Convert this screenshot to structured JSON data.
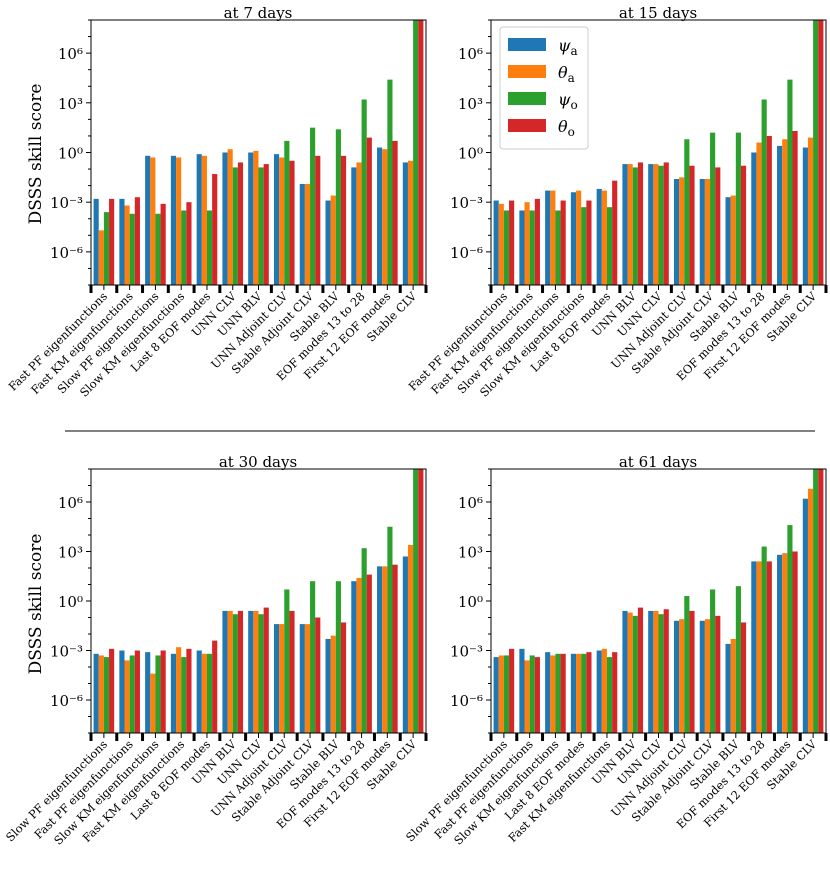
{
  "colors": {
    "psi_a": "#1f77b4",
    "theta_a": "#ff7f0e",
    "psi_o": "#2ca02c",
    "theta_o": "#d62728"
  },
  "legend": [
    {
      "key": "psi_a",
      "symbol": "ψ",
      "sub": "a"
    },
    {
      "key": "theta_a",
      "symbol": "θ",
      "sub": "a"
    },
    {
      "key": "psi_o",
      "symbol": "ψ",
      "sub": "o"
    },
    {
      "key": "theta_o",
      "symbol": "θ",
      "sub": "o"
    }
  ],
  "chart_data": [
    {
      "type": "bar",
      "title": "at 7 days",
      "ylabel": "DSSS skill score",
      "yscale": "log",
      "ylim_exp": [
        -8,
        8
      ],
      "ytick_exps": [
        -6,
        -3,
        0,
        3,
        6
      ],
      "series_names": [
        "psi_a",
        "theta_a",
        "psi_o",
        "theta_o"
      ],
      "categories": [
        "Fast PF eigenfunctions",
        "Fast KM eigenfunctions",
        "Slow PF eigenfunctions",
        "Slow KM eigenfunctions",
        "Last 8 EOF modes",
        "UNN CLV",
        "UNN BLV",
        "UNN Adjoint CLV",
        "Stable Adjoint CLV",
        "Stable BLV",
        "EOF modes 13 to 28",
        "First 12 EOF modes",
        "Stable CLV"
      ],
      "log10_values": [
        [
          -2.8,
          -4.7,
          -3.6,
          -2.8
        ],
        [
          -2.8,
          -3.2,
          -3.7,
          -2.7
        ],
        [
          -0.2,
          -0.3,
          -3.7,
          -3.1
        ],
        [
          -0.2,
          -0.3,
          -3.5,
          -3.0
        ],
        [
          -0.1,
          -0.2,
          -3.5,
          -1.3
        ],
        [
          0.0,
          0.2,
          -0.9,
          -0.6
        ],
        [
          0.0,
          0.1,
          -0.9,
          -0.7
        ],
        [
          -0.1,
          -0.3,
          0.7,
          -0.5
        ],
        [
          -1.9,
          -1.9,
          1.5,
          -0.2
        ],
        [
          -2.9,
          -2.6,
          1.4,
          -0.2
        ],
        [
          -0.9,
          -0.6,
          3.2,
          0.9
        ],
        [
          0.3,
          0.2,
          4.4,
          0.7
        ],
        [
          -0.6,
          -0.5,
          8.0,
          8.0
        ]
      ]
    },
    {
      "type": "bar",
      "title": "at 15 days",
      "ylabel": "",
      "yscale": "log",
      "ylim_exp": [
        -8,
        8
      ],
      "ytick_exps": [
        -6,
        -3,
        0,
        3,
        6
      ],
      "series_names": [
        "psi_a",
        "theta_a",
        "psi_o",
        "theta_o"
      ],
      "categories": [
        "Fast PF eigenfunctions",
        "Fast KM eigenfunctions",
        "Slow PF eigenfunctions",
        "Slow KM eigenfunctions",
        "Last 8 EOF modes",
        "UNN BLV",
        "UNN CLV",
        "UNN Adjoint CLV",
        "Stable Adjoint CLV",
        "Stable BLV",
        "EOF modes 13 to 28",
        "First 12 EOF modes",
        "Stable CLV"
      ],
      "log10_values": [
        [
          -2.9,
          -3.1,
          -3.5,
          -2.9
        ],
        [
          -3.5,
          -3.0,
          -3.5,
          -2.8
        ],
        [
          -2.3,
          -2.3,
          -3.5,
          -2.9
        ],
        [
          -2.4,
          -2.3,
          -3.3,
          -2.9
        ],
        [
          -2.2,
          -2.3,
          -3.3,
          -1.7
        ],
        [
          -0.7,
          -0.7,
          -0.9,
          -0.6
        ],
        [
          -0.7,
          -0.7,
          -0.8,
          -0.6
        ],
        [
          -1.6,
          -1.5,
          0.8,
          -0.8
        ],
        [
          -1.6,
          -1.6,
          1.2,
          -0.9
        ],
        [
          -2.7,
          -2.6,
          1.2,
          -0.8
        ],
        [
          0.0,
          0.6,
          3.2,
          1.0
        ],
        [
          0.4,
          0.8,
          4.4,
          1.3
        ],
        [
          0.3,
          0.9,
          8.0,
          8.0
        ]
      ]
    },
    {
      "type": "bar",
      "title": "at 30 days",
      "ylabel": "DSSS skill score",
      "yscale": "log",
      "ylim_exp": [
        -8,
        8
      ],
      "ytick_exps": [
        -6,
        -3,
        0,
        3,
        6
      ],
      "series_names": [
        "psi_a",
        "theta_a",
        "psi_o",
        "theta_o"
      ],
      "categories": [
        "Slow PF eigenfunctions",
        "Fast PF eigenfunctions",
        "Slow KM eigenfunctions",
        "Fast KM eigenfunctions",
        "Last 8 EOF modes",
        "UNN BLV",
        "UNN CLV",
        "UNN Adjoint CLV",
        "Stable Adjoint CLV",
        "Stable BLV",
        "EOF modes 13 to 28",
        "First 12 EOF modes",
        "Stable CLV"
      ],
      "log10_values": [
        [
          -3.2,
          -3.3,
          -3.4,
          -2.9
        ],
        [
          -3.0,
          -3.6,
          -3.3,
          -3.0
        ],
        [
          -3.1,
          -4.4,
          -3.3,
          -3.0
        ],
        [
          -3.2,
          -2.8,
          -3.4,
          -2.9
        ],
        [
          -3.0,
          -3.2,
          -3.2,
          -2.4
        ],
        [
          -0.6,
          -0.6,
          -0.8,
          -0.6
        ],
        [
          -0.6,
          -0.6,
          -0.8,
          -0.4
        ],
        [
          -1.4,
          -1.4,
          0.7,
          -0.6
        ],
        [
          -1.4,
          -1.4,
          1.2,
          -1.0
        ],
        [
          -2.3,
          -2.1,
          1.2,
          -1.3
        ],
        [
          1.2,
          1.4,
          3.2,
          1.6
        ],
        [
          2.1,
          2.1,
          4.5,
          2.2
        ],
        [
          2.7,
          3.4,
          8.0,
          8.0
        ]
      ]
    },
    {
      "type": "bar",
      "title": "at 61 days",
      "ylabel": "",
      "yscale": "log",
      "ylim_exp": [
        -8,
        8
      ],
      "ytick_exps": [
        -6,
        -3,
        0,
        3,
        6
      ],
      "series_names": [
        "psi_a",
        "theta_a",
        "psi_o",
        "theta_o"
      ],
      "categories": [
        "Slow PF eigenfunctions",
        "Fast PF eigenfunctions",
        "Slow KM eigenfunctions",
        "Last 8 EOF modes",
        "Fast KM eigenfunctions",
        "UNN BLV",
        "UNN CLV",
        "UNN Adjoint CLV",
        "Stable Adjoint CLV",
        "Stable BLV",
        "EOF modes 13 to 28",
        "First 12 EOF modes",
        "Stable CLV"
      ],
      "log10_values": [
        [
          -3.4,
          -3.3,
          -3.3,
          -2.9
        ],
        [
          -2.9,
          -3.6,
          -3.3,
          -3.4
        ],
        [
          -3.1,
          -3.3,
          -3.2,
          -3.2
        ],
        [
          -3.2,
          -3.2,
          -3.2,
          -3.1
        ],
        [
          -3.0,
          -2.9,
          -3.4,
          -3.1
        ],
        [
          -0.6,
          -0.7,
          -0.9,
          -0.4
        ],
        [
          -0.6,
          -0.6,
          -0.8,
          -0.5
        ],
        [
          -1.2,
          -1.1,
          0.3,
          -0.6
        ],
        [
          -1.2,
          -1.1,
          0.7,
          -0.9
        ],
        [
          -2.6,
          -2.3,
          0.9,
          -1.3
        ],
        [
          2.4,
          2.4,
          3.3,
          2.4
        ],
        [
          2.8,
          2.9,
          4.6,
          3.0
        ],
        [
          6.2,
          6.8,
          8.0,
          8.0
        ]
      ]
    }
  ]
}
